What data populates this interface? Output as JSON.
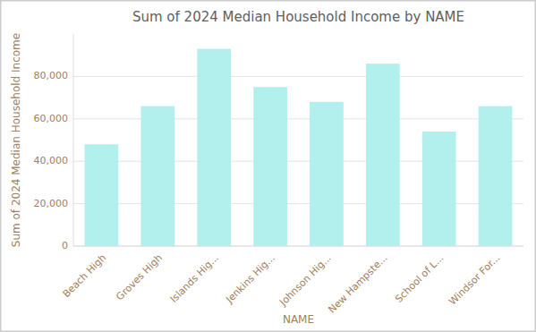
{
  "chart_data": {
    "type": "bar",
    "title": "Sum of 2024 Median Household Income by NAME",
    "xlabel": "NAME",
    "ylabel": "Sum of 2024 Median Household Income",
    "categories": [
      "Beach High",
      "Groves High",
      "Islands Hig...",
      "Jenkins Hig...",
      "Johnson Hig...",
      "New Hampste...",
      "School of L...",
      "Windsor For..."
    ],
    "values": [
      48000,
      66000,
      93000,
      75000,
      68000,
      86000,
      54000,
      66000
    ],
    "color": "#b2f0ee",
    "ylim": [
      0,
      100000
    ],
    "yticks": [
      0,
      {
        "value": 20000,
        "label": "20,000"
      },
      {
        "value": 40000,
        "label": "40,000"
      },
      {
        "value": 60000,
        "label": "60,000"
      },
      {
        "value": 80000,
        "label": "80,000"
      }
    ],
    "grid": true
  }
}
